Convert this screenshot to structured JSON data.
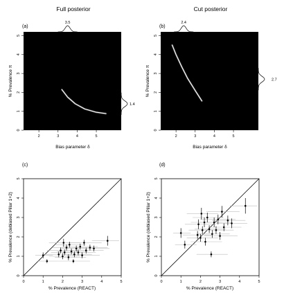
{
  "colors": {
    "heatmap_bg": "#000000",
    "heatmap_ridge": "#ffffff",
    "error_bar": "#bdbdbd",
    "point": "#000000",
    "axis": "#000000"
  },
  "chart_data": [
    {
      "id": "a",
      "type": "heatmap",
      "title": "Full posterior",
      "panel_label": "(a)",
      "xlabel": "Bias parameter  δ",
      "ylabel": "% Prevalence  π",
      "xlim": [
        1.2,
        6.3
      ],
      "ylim": [
        0,
        5.2
      ],
      "xticks": [
        2,
        3,
        4,
        5
      ],
      "yticks": [
        0,
        1,
        2,
        3,
        4,
        5
      ],
      "ridge": {
        "x": [
          3.2,
          3.5,
          3.9,
          4.4,
          5.0,
          5.5
        ],
        "y": [
          2.15,
          1.75,
          1.4,
          1.12,
          0.95,
          0.88
        ]
      },
      "top_marginal_label": "3.5",
      "top_marginal_mode": 3.5,
      "side_marginal_label": "1.4",
      "side_marginal_mode": 1.4
    },
    {
      "id": "b",
      "type": "heatmap",
      "title": "Cut posterior",
      "panel_label": "(b)",
      "xlabel": "Bias parameter  δ",
      "ylabel": "% Prevalence  π",
      "xlim": [
        1.2,
        6.3
      ],
      "ylim": [
        0,
        5.2
      ],
      "xticks": [
        2,
        3,
        4,
        5
      ],
      "yticks": [
        0,
        1,
        2,
        3,
        4,
        5
      ],
      "ridge": {
        "x": [
          1.8,
          2.0,
          2.3,
          2.6,
          3.0,
          3.35
        ],
        "y": [
          4.5,
          4.0,
          3.35,
          2.75,
          2.1,
          1.55
        ]
      },
      "top_marginal_label": "2.4",
      "top_marginal_mode": 2.4,
      "side_marginal_label": "2.7",
      "side_marginal_mode": 2.7
    },
    {
      "id": "c",
      "type": "scatter",
      "panel_label": "(c)",
      "xlabel": "% Prevalence (REACT)",
      "ylabel": "% Prevalence (debiased Pillar 1+2)",
      "xlim": [
        0,
        5
      ],
      "ylim": [
        0,
        5
      ],
      "xticks": [
        0,
        1,
        2,
        3,
        4,
        5
      ],
      "yticks": [
        0,
        1,
        2,
        3,
        4,
        5
      ],
      "reference_line": "y = x",
      "points": [
        {
          "x": 1.0,
          "y": 1.05,
          "xlo": 0.6,
          "xhi": 1.5,
          "ylo": 0.9,
          "yhi": 1.2
        },
        {
          "x": 1.2,
          "y": 0.75,
          "xlo": 0.7,
          "xhi": 1.8,
          "ylo": 0.65,
          "yhi": 0.85
        },
        {
          "x": 1.8,
          "y": 1.1,
          "xlo": 1.1,
          "xhi": 2.6,
          "ylo": 0.95,
          "yhi": 1.25
        },
        {
          "x": 1.9,
          "y": 1.3,
          "xlo": 1.2,
          "xhi": 2.8,
          "ylo": 1.15,
          "yhi": 1.45
        },
        {
          "x": 2.0,
          "y": 1.0,
          "xlo": 1.3,
          "xhi": 2.9,
          "ylo": 0.85,
          "yhi": 1.15
        },
        {
          "x": 2.05,
          "y": 1.7,
          "xlo": 1.3,
          "xhi": 2.9,
          "ylo": 1.5,
          "yhi": 1.9
        },
        {
          "x": 2.1,
          "y": 1.2,
          "xlo": 1.4,
          "xhi": 3.0,
          "ylo": 1.05,
          "yhi": 1.35
        },
        {
          "x": 2.2,
          "y": 1.45,
          "xlo": 1.5,
          "xhi": 3.1,
          "ylo": 1.3,
          "yhi": 1.6
        },
        {
          "x": 2.3,
          "y": 0.95,
          "xlo": 1.6,
          "xhi": 3.2,
          "ylo": 0.8,
          "yhi": 1.1
        },
        {
          "x": 2.35,
          "y": 1.6,
          "xlo": 1.6,
          "xhi": 3.2,
          "ylo": 1.45,
          "yhi": 1.75
        },
        {
          "x": 2.45,
          "y": 1.25,
          "xlo": 1.7,
          "xhi": 3.3,
          "ylo": 1.1,
          "yhi": 1.4
        },
        {
          "x": 2.55,
          "y": 0.75,
          "xlo": 1.8,
          "xhi": 3.4,
          "ylo": 0.65,
          "yhi": 0.85
        },
        {
          "x": 2.6,
          "y": 1.1,
          "xlo": 1.8,
          "xhi": 3.5,
          "ylo": 0.95,
          "yhi": 1.25
        },
        {
          "x": 2.7,
          "y": 1.4,
          "xlo": 1.9,
          "xhi": 3.6,
          "ylo": 1.25,
          "yhi": 1.55
        },
        {
          "x": 2.8,
          "y": 1.2,
          "xlo": 2.0,
          "xhi": 3.7,
          "ylo": 1.05,
          "yhi": 1.35
        },
        {
          "x": 2.9,
          "y": 1.5,
          "xlo": 2.0,
          "xhi": 3.8,
          "ylo": 1.35,
          "yhi": 1.65
        },
        {
          "x": 3.0,
          "y": 1.05,
          "xlo": 2.2,
          "xhi": 3.9,
          "ylo": 0.9,
          "yhi": 1.2
        },
        {
          "x": 3.1,
          "y": 1.7,
          "xlo": 2.3,
          "xhi": 4.0,
          "ylo": 1.55,
          "yhi": 1.85
        },
        {
          "x": 3.2,
          "y": 1.3,
          "xlo": 2.4,
          "xhi": 4.1,
          "ylo": 1.15,
          "yhi": 1.45
        },
        {
          "x": 3.4,
          "y": 1.45,
          "xlo": 2.6,
          "xhi": 4.3,
          "ylo": 1.3,
          "yhi": 1.6
        },
        {
          "x": 3.6,
          "y": 1.4,
          "xlo": 2.8,
          "xhi": 4.4,
          "ylo": 1.25,
          "yhi": 1.55
        },
        {
          "x": 4.3,
          "y": 1.8,
          "xlo": 3.5,
          "xhi": 4.9,
          "ylo": 1.55,
          "yhi": 2.05
        }
      ]
    },
    {
      "id": "d",
      "type": "scatter",
      "panel_label": "(d)",
      "xlabel": "% Prevalence (REACT)",
      "ylabel": "% Prevalence (debiased Pillar 1+2)",
      "xlim": [
        0,
        5
      ],
      "ylim": [
        0,
        5
      ],
      "xticks": [
        0,
        1,
        2,
        3,
        4,
        5
      ],
      "yticks": [
        0,
        1,
        2,
        3,
        4,
        5
      ],
      "reference_line": "y = x",
      "points": [
        {
          "x": 1.0,
          "y": 2.2,
          "xlo": 0.6,
          "xhi": 1.5,
          "ylo": 1.95,
          "yhi": 2.45
        },
        {
          "x": 1.2,
          "y": 1.6,
          "xlo": 0.7,
          "xhi": 1.8,
          "ylo": 1.4,
          "yhi": 1.8
        },
        {
          "x": 1.85,
          "y": 2.1,
          "xlo": 1.1,
          "xhi": 2.6,
          "ylo": 1.9,
          "yhi": 2.3
        },
        {
          "x": 1.9,
          "y": 2.65,
          "xlo": 1.2,
          "xhi": 2.8,
          "ylo": 2.4,
          "yhi": 2.9
        },
        {
          "x": 2.0,
          "y": 1.95,
          "xlo": 1.3,
          "xhi": 2.9,
          "ylo": 1.75,
          "yhi": 2.15
        },
        {
          "x": 2.05,
          "y": 3.2,
          "xlo": 1.3,
          "xhi": 2.9,
          "ylo": 2.9,
          "yhi": 3.5
        },
        {
          "x": 2.1,
          "y": 2.35,
          "xlo": 1.4,
          "xhi": 3.0,
          "ylo": 2.15,
          "yhi": 2.55
        },
        {
          "x": 2.2,
          "y": 2.75,
          "xlo": 1.5,
          "xhi": 3.1,
          "ylo": 2.5,
          "yhi": 3.0
        },
        {
          "x": 2.25,
          "y": 1.75,
          "xlo": 1.5,
          "xhi": 3.1,
          "ylo": 1.55,
          "yhi": 1.95
        },
        {
          "x": 2.35,
          "y": 3.0,
          "xlo": 1.6,
          "xhi": 3.2,
          "ylo": 2.75,
          "yhi": 3.25
        },
        {
          "x": 2.45,
          "y": 2.4,
          "xlo": 1.7,
          "xhi": 3.3,
          "ylo": 2.2,
          "yhi": 2.6
        },
        {
          "x": 2.55,
          "y": 1.1,
          "xlo": 1.8,
          "xhi": 3.4,
          "ylo": 0.95,
          "yhi": 1.25
        },
        {
          "x": 2.6,
          "y": 2.15,
          "xlo": 1.8,
          "xhi": 3.5,
          "ylo": 1.95,
          "yhi": 2.35
        },
        {
          "x": 2.7,
          "y": 2.75,
          "xlo": 1.9,
          "xhi": 3.6,
          "ylo": 2.5,
          "yhi": 3.0
        },
        {
          "x": 2.8,
          "y": 2.35,
          "xlo": 2.0,
          "xhi": 3.7,
          "ylo": 2.15,
          "yhi": 2.55
        },
        {
          "x": 2.9,
          "y": 2.9,
          "xlo": 2.0,
          "xhi": 3.8,
          "ylo": 2.65,
          "yhi": 3.15
        },
        {
          "x": 3.0,
          "y": 2.05,
          "xlo": 2.2,
          "xhi": 3.9,
          "ylo": 1.85,
          "yhi": 2.25
        },
        {
          "x": 3.1,
          "y": 3.3,
          "xlo": 2.3,
          "xhi": 4.0,
          "ylo": 3.0,
          "yhi": 3.6
        },
        {
          "x": 3.2,
          "y": 2.5,
          "xlo": 2.4,
          "xhi": 4.1,
          "ylo": 2.3,
          "yhi": 2.7
        },
        {
          "x": 3.4,
          "y": 2.85,
          "xlo": 2.6,
          "xhi": 4.3,
          "ylo": 2.6,
          "yhi": 3.1
        },
        {
          "x": 3.6,
          "y": 2.7,
          "xlo": 2.8,
          "xhi": 4.4,
          "ylo": 2.45,
          "yhi": 2.95
        },
        {
          "x": 4.3,
          "y": 3.6,
          "xlo": 3.5,
          "xhi": 4.9,
          "ylo": 3.2,
          "yhi": 4.0
        }
      ]
    }
  ]
}
